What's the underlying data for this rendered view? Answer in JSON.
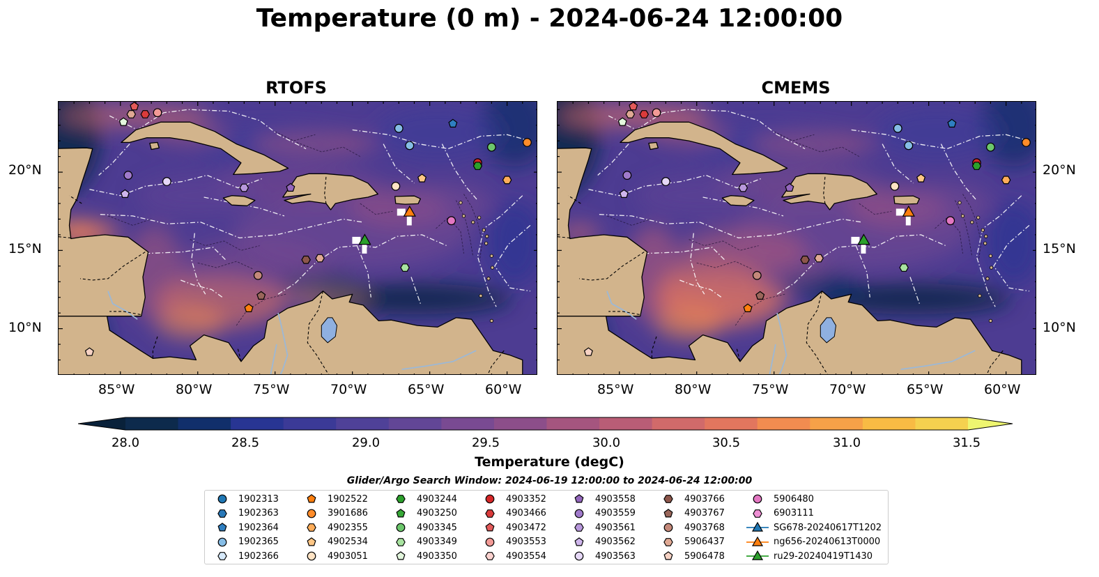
{
  "title": "Temperature (0 m) - 2024-06-24 12:00:00",
  "panels": [
    {
      "title": "RTOFS",
      "variant": "rtofs"
    },
    {
      "title": "CMEMS",
      "variant": "cmems"
    }
  ],
  "lon_ticks": [
    "85°W",
    "80°W",
    "75°W",
    "70°W",
    "65°W",
    "60°W"
  ],
  "lat_ticks": [
    "20°N",
    "15°N",
    "10°N"
  ],
  "map_extent": {
    "lon": [
      -89,
      -58
    ],
    "lat": [
      7,
      24.5
    ]
  },
  "colorbar": {
    "label": "Temperature (degC)",
    "ticks": [
      "28.0",
      "28.5",
      "29.0",
      "29.5",
      "30.0",
      "30.5",
      "31.0",
      "31.5"
    ],
    "range": [
      28.0,
      31.5
    ],
    "colors": [
      "#0d2a4c",
      "#112f6b",
      "#283593",
      "#3b3a97",
      "#4f4198",
      "#624696",
      "#794a92",
      "#8c4e8a",
      "#a5557f",
      "#b95d76",
      "#d16a6a",
      "#e2765e",
      "#f28c50",
      "#f6a148",
      "#f8bb44",
      "#f5d14f"
    ],
    "under_color": "#09213a",
    "over_color": "#eef570"
  },
  "search_window": "Glider/Argo Search Window: 2024-06-19 12:00:00 to 2024-06-24 12:00:00",
  "colors": {
    "land": "#d2b48c",
    "coast_dark": "#0a2238",
    "rivers": "#9cb8d6",
    "eez": "#ffffff"
  },
  "legend": [
    {
      "label": "1902313",
      "marker": "circle",
      "color": "#1f77b4"
    },
    {
      "label": "1902363",
      "marker": "hexagon",
      "color": "#2878b8"
    },
    {
      "label": "1902364",
      "marker": "pentagon",
      "color": "#2f7fc1"
    },
    {
      "label": "1902365",
      "marker": "circle",
      "color": "#86bde6"
    },
    {
      "label": "1902366",
      "marker": "hexagon",
      "color": "#d6e9fa"
    },
    {
      "label": "1902522",
      "marker": "pentagon",
      "color": "#ff7f0e"
    },
    {
      "label": "3901686",
      "marker": "circle",
      "color": "#ff8c2a"
    },
    {
      "label": "4902355",
      "marker": "hexagon",
      "color": "#ffad5a"
    },
    {
      "label": "4902534",
      "marker": "pentagon",
      "color": "#ffc786"
    },
    {
      "label": "4903051",
      "marker": "circle",
      "color": "#ffe3c4"
    },
    {
      "label": "4903244",
      "marker": "hexagon",
      "color": "#2ca02c"
    },
    {
      "label": "4903250",
      "marker": "pentagon",
      "color": "#37a837"
    },
    {
      "label": "4903345",
      "marker": "circle",
      "color": "#6cc76c"
    },
    {
      "label": "4903349",
      "marker": "hexagon",
      "color": "#a8e3a0"
    },
    {
      "label": "4903350",
      "marker": "pentagon",
      "color": "#e3f6dd"
    },
    {
      "label": "4903352",
      "marker": "circle",
      "color": "#d62728"
    },
    {
      "label": "4903466",
      "marker": "hexagon",
      "color": "#da3b3b"
    },
    {
      "label": "4903472",
      "marker": "pentagon",
      "color": "#e35a5a"
    },
    {
      "label": "4903553",
      "marker": "circle",
      "color": "#f29a96"
    },
    {
      "label": "4903554",
      "marker": "hexagon",
      "color": "#fbd2cf"
    },
    {
      "label": "4903558",
      "marker": "pentagon",
      "color": "#9467bd"
    },
    {
      "label": "4903559",
      "marker": "circle",
      "color": "#a07acb"
    },
    {
      "label": "4903561",
      "marker": "hexagon",
      "color": "#b898dc"
    },
    {
      "label": "4903562",
      "marker": "pentagon",
      "color": "#cfb6ec"
    },
    {
      "label": "4903563",
      "marker": "circle",
      "color": "#e6d8f7"
    },
    {
      "label": "4903766",
      "marker": "hexagon",
      "color": "#8c564b"
    },
    {
      "label": "4903767",
      "marker": "pentagon",
      "color": "#9a665a"
    },
    {
      "label": "4903768",
      "marker": "circle",
      "color": "#c4897a"
    },
    {
      "label": "5906437",
      "marker": "hexagon",
      "color": "#e0a994"
    },
    {
      "label": "5906478",
      "marker": "pentagon",
      "color": "#f6d2c4"
    },
    {
      "label": "5906480",
      "marker": "circle",
      "color": "#e377c2"
    },
    {
      "label": "6903111",
      "marker": "hexagon",
      "color": "#ee8fd4"
    },
    {
      "label": "SG678-20240617T1202",
      "marker": "triangle-line",
      "color": "#1f77b4"
    },
    {
      "label": "ng656-20240613T0000",
      "marker": "triangle-line",
      "color": "#ff7f0e"
    },
    {
      "label": "ru29-20240419T1430",
      "marker": "triangle-line",
      "color": "#2ca02c"
    }
  ],
  "floats": [
    {
      "id": "5906478",
      "lon": -87.0,
      "lat": 8.5
    },
    {
      "id": "4903350",
      "lon": -84.8,
      "lat": 23.2
    },
    {
      "id": "5906437",
      "lon": -84.3,
      "lat": 23.7
    },
    {
      "id": "4903472",
      "lon": -84.1,
      "lat": 24.2
    },
    {
      "id": "4903466",
      "lon": -83.4,
      "lat": 23.7
    },
    {
      "id": "4903553",
      "lon": -82.6,
      "lat": 23.8
    },
    {
      "id": "4903559",
      "lon": -84.5,
      "lat": 19.8
    },
    {
      "id": "4903562",
      "lon": -84.7,
      "lat": 18.6
    },
    {
      "id": "4903563",
      "lon": -82.0,
      "lat": 19.4
    },
    {
      "id": "4903561",
      "lon": -77.0,
      "lat": 19.0
    },
    {
      "id": "4903558",
      "lon": -74.0,
      "lat": 19.0
    },
    {
      "id": "1902364",
      "lon": -63.5,
      "lat": 23.1
    },
    {
      "id": "1902365",
      "lon": -67.0,
      "lat": 22.8
    },
    {
      "id": "1902365",
      "lon": -66.3,
      "lat": 21.7
    },
    {
      "id": "4903345",
      "lon": -61.0,
      "lat": 21.6
    },
    {
      "id": "4903352",
      "lon": -61.9,
      "lat": 20.6
    },
    {
      "id": "4903244",
      "lon": -61.9,
      "lat": 20.4
    },
    {
      "id": "3901686",
      "lon": -58.7,
      "lat": 21.9
    },
    {
      "id": "4903051",
      "lon": -67.2,
      "lat": 19.1
    },
    {
      "id": "4902534",
      "lon": -65.5,
      "lat": 19.6
    },
    {
      "id": "4902355",
      "lon": -60.0,
      "lat": 19.5
    },
    {
      "id": "5906480",
      "lon": -63.6,
      "lat": 16.9
    },
    {
      "id": "4903349",
      "lon": -66.6,
      "lat": 13.9
    },
    {
      "id": "4903766",
      "lon": -73.0,
      "lat": 14.4
    },
    {
      "id": "5906437",
      "lon": -72.1,
      "lat": 14.5
    },
    {
      "id": "4903768",
      "lon": -76.1,
      "lat": 13.4
    },
    {
      "id": "4903767",
      "lon": -75.9,
      "lat": 12.1
    },
    {
      "id": "1902522",
      "lon": -76.7,
      "lat": 11.3
    }
  ],
  "gliders": [
    {
      "id": "ng656-20240613T0000",
      "lon": -66.3,
      "lat": 17.4
    },
    {
      "id": "ru29-20240419T1430",
      "lon": -69.2,
      "lat": 15.6
    }
  ]
}
